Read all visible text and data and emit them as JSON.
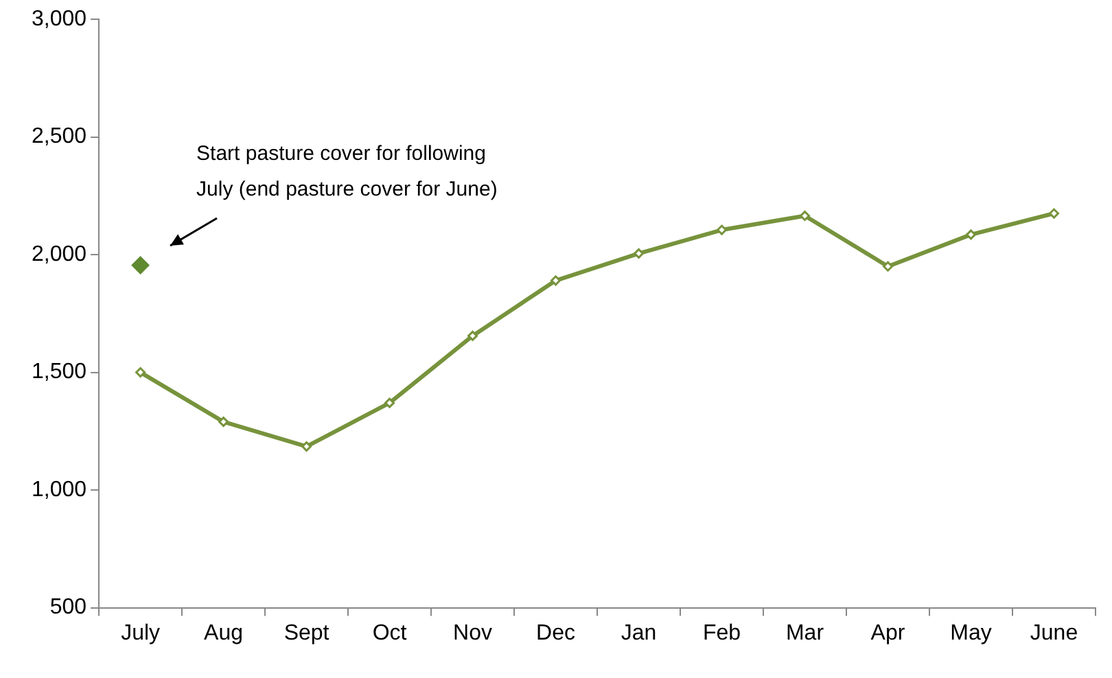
{
  "chart_data": {
    "type": "line",
    "categories": [
      "July",
      "Aug",
      "Sept",
      "Oct",
      "Nov",
      "Dec",
      "Jan",
      "Feb",
      "Mar",
      "Apr",
      "May",
      "June"
    ],
    "series": [
      {
        "color": "#77933c",
        "values": [
          1500,
          1290,
          1185,
          1370,
          1655,
          1890,
          2005,
          2105,
          2165,
          1950,
          2085,
          2175
        ]
      },
      {
        "type": "scatter",
        "color": "#5f8a2f",
        "values": [
          1955,
          null,
          null,
          null,
          null,
          null,
          null,
          null,
          null,
          null,
          null,
          null
        ]
      }
    ],
    "ylim": [
      500,
      3000
    ],
    "yticks": [
      500,
      {
        "value": 1000,
        "label": "1,000"
      },
      {
        "value": 1500,
        "label": "1,500"
      },
      {
        "value": 2000,
        "label": "2,000"
      },
      {
        "value": 2500,
        "label": "2,500"
      },
      {
        "value": 3000,
        "label": "3,000"
      }
    ],
    "grid": false,
    "legend": false,
    "marker": "diamond",
    "line_style": "solid",
    "annotations": [
      "Start pasture cover for following July (end pasture cover for June)"
    ]
  }
}
